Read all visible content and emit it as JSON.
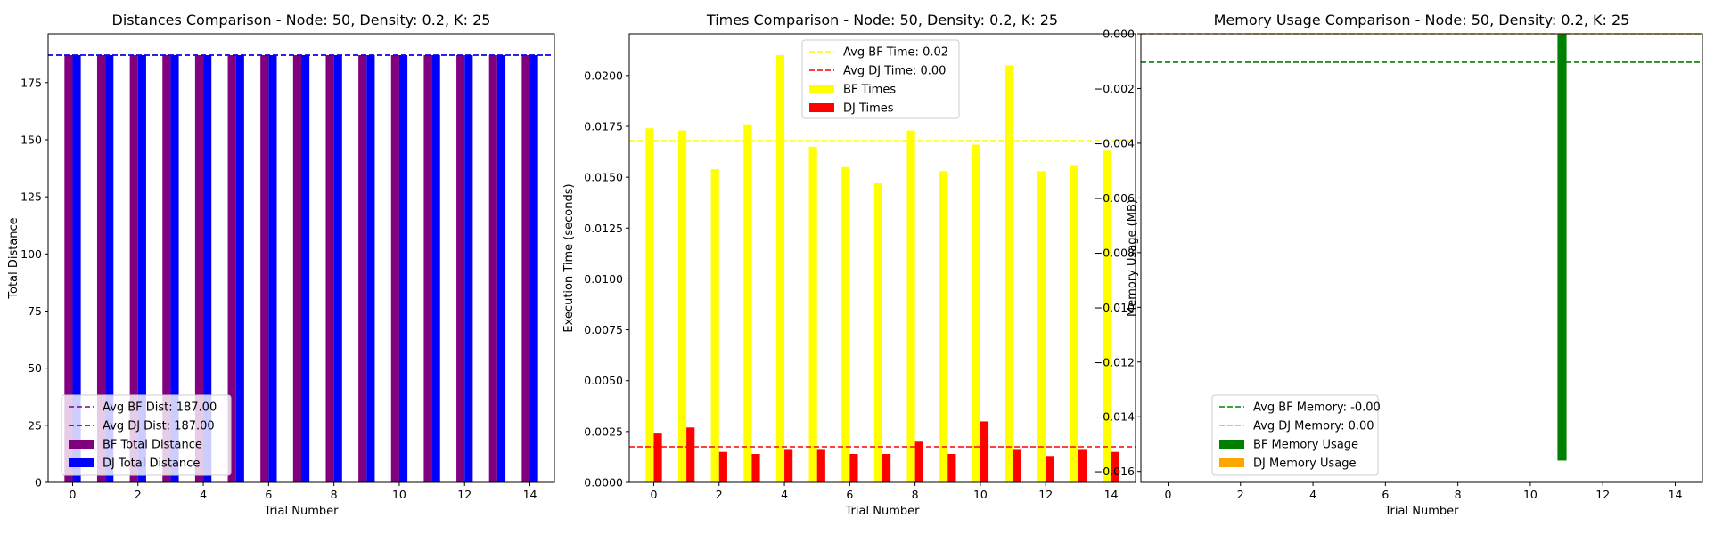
{
  "chart_data": [
    {
      "type": "bar",
      "title": "Distances Comparison - Node: 50, Density: 0.2, K: 25",
      "xlabel": "Trial Number",
      "ylabel": "Total Distance",
      "x": [
        0,
        1,
        2,
        3,
        4,
        5,
        6,
        7,
        8,
        9,
        10,
        11,
        12,
        13,
        14
      ],
      "xlim": [
        -0.75,
        14.75
      ],
      "ylim": [
        0,
        196.35
      ],
      "xticks": [
        0,
        2,
        4,
        6,
        8,
        10,
        12,
        14
      ],
      "yticks": [
        0,
        25,
        50,
        75,
        100,
        125,
        150,
        175
      ],
      "ytick_labels": [
        "0",
        "25",
        "50",
        "75",
        "100",
        "125",
        "150",
        "175"
      ],
      "series": [
        {
          "name": "BF Total Distance",
          "color": "#800080",
          "values": [
            187,
            187,
            187,
            187,
            187,
            187,
            187,
            187,
            187,
            187,
            187,
            187,
            187,
            187,
            187
          ]
        },
        {
          "name": "DJ Total Distance",
          "color": "#0000ff",
          "values": [
            187,
            187,
            187,
            187,
            187,
            187,
            187,
            187,
            187,
            187,
            187,
            187,
            187,
            187,
            187
          ]
        }
      ],
      "hlines": [
        {
          "name": "Avg BF Dist: 187.00",
          "color": "#800080",
          "value": 187.0
        },
        {
          "name": "Avg DJ Dist: 187.00",
          "color": "#0000ff",
          "value": 187.0
        }
      ],
      "legend_placement": "lower-left"
    },
    {
      "type": "bar",
      "title": "Times Comparison - Node: 50, Density: 0.2, K: 25",
      "xlabel": "Trial Number",
      "ylabel": "Execution Time (seconds)",
      "x": [
        0,
        1,
        2,
        3,
        4,
        5,
        6,
        7,
        8,
        9,
        10,
        11,
        12,
        13,
        14
      ],
      "xlim": [
        -0.75,
        14.75
      ],
      "ylim": [
        0,
        0.02205
      ],
      "xticks": [
        0,
        2,
        4,
        6,
        8,
        10,
        12,
        14
      ],
      "yticks": [
        0,
        0.0025,
        0.005,
        0.0075,
        0.01,
        0.0125,
        0.015,
        0.0175,
        0.02
      ],
      "ytick_labels": [
        "0.0000",
        "0.0025",
        "0.0050",
        "0.0075",
        "0.0100",
        "0.0125",
        "0.0150",
        "0.0175",
        "0.0200"
      ],
      "series": [
        {
          "name": "BF Times",
          "color": "#ffff00",
          "values": [
            0.0174,
            0.0173,
            0.0154,
            0.0176,
            0.021,
            0.0165,
            0.0155,
            0.0147,
            0.0173,
            0.0153,
            0.0166,
            0.0205,
            0.0153,
            0.0156,
            0.0163
          ]
        },
        {
          "name": "DJ Times",
          "color": "#ff0000",
          "values": [
            0.0024,
            0.0027,
            0.0015,
            0.0014,
            0.0016,
            0.0016,
            0.0014,
            0.0014,
            0.002,
            0.0014,
            0.003,
            0.0016,
            0.0013,
            0.0016,
            0.0015
          ]
        }
      ],
      "hlines": [
        {
          "name": "Avg BF Time: 0.02",
          "color": "#ffff00",
          "value": 0.0168
        },
        {
          "name": "Avg DJ Time: 0.00",
          "color": "#ff0000",
          "value": 0.00175
        }
      ],
      "legend_placement": "upper-center"
    },
    {
      "type": "bar",
      "title": "Memory Usage Comparison - Node: 50, Density: 0.2, K: 25",
      "xlabel": "Trial Number",
      "ylabel": "Memory Usage (MB)",
      "x": [
        0,
        1,
        2,
        3,
        4,
        5,
        6,
        7,
        8,
        9,
        10,
        11,
        12,
        13,
        14
      ],
      "xlim": [
        -0.75,
        14.75
      ],
      "ylim": [
        -0.0164,
        0
      ],
      "xticks": [
        0,
        2,
        4,
        6,
        8,
        10,
        12,
        14
      ],
      "yticks": [
        0,
        -0.002,
        -0.004,
        -0.006,
        -0.008,
        -0.01,
        -0.012,
        -0.014,
        -0.016
      ],
      "ytick_labels": [
        "0.000",
        "−0.002",
        "−0.004",
        "−0.006",
        "−0.008",
        "−0.010",
        "−0.012",
        "−0.014",
        "−0.016"
      ],
      "series": [
        {
          "name": "BF Memory Usage",
          "color": "#008000",
          "values": [
            0,
            0,
            0,
            0,
            0,
            0,
            0,
            0,
            0,
            0,
            0,
            -0.0156,
            0,
            0,
            0
          ]
        },
        {
          "name": "DJ Memory Usage",
          "color": "#ffa500",
          "values": [
            0,
            0,
            0,
            0,
            0,
            0,
            0,
            0,
            0,
            0,
            0,
            0,
            0,
            0,
            0
          ]
        }
      ],
      "hlines": [
        {
          "name": "Avg BF Memory: -0.00",
          "color": "#008000",
          "value": -0.00104
        },
        {
          "name": "Avg DJ Memory: 0.00",
          "color": "#ffa500",
          "value": 0.0
        }
      ],
      "legend_placement": "lower-left"
    }
  ]
}
